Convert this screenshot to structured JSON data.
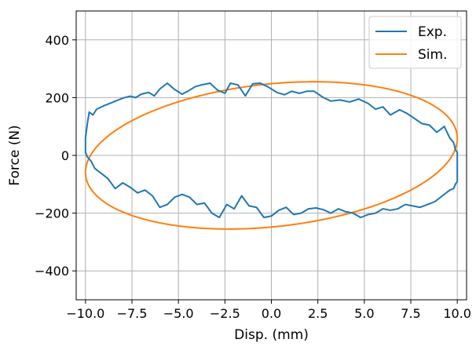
{
  "chart_data": {
    "type": "line",
    "title": "",
    "xlabel": "Disp. (mm)",
    "ylabel": "Force (N)",
    "xlim": [
      -10.5,
      10.5
    ],
    "ylim": [
      -500,
      500
    ],
    "xticks": [
      -10.0,
      -7.5,
      -5.0,
      -2.5,
      0.0,
      2.5,
      5.0,
      7.5,
      10.0
    ],
    "xtick_labels": [
      "−10.0",
      "−7.5",
      "−5.0",
      "−2.5",
      "0.0",
      "2.5",
      "5.0",
      "7.5",
      "10.0"
    ],
    "yticks": [
      -400,
      -200,
      0,
      200,
      400
    ],
    "ytick_labels": [
      "−400",
      "−200",
      "0",
      "200",
      "400"
    ],
    "grid": true,
    "legend_position": "top-right",
    "series": [
      {
        "name": "Exp.",
        "color": "#1f77b4",
        "x": [
          -10.0,
          -9.9,
          -9.8,
          -9.6,
          -9.4,
          -9.0,
          -8.5,
          -8.0,
          -7.6,
          -7.3,
          -7.0,
          -6.6,
          -6.3,
          -6.0,
          -5.6,
          -5.2,
          -4.8,
          -4.5,
          -4.1,
          -3.7,
          -3.3,
          -2.9,
          -2.5,
          -2.2,
          -1.8,
          -1.4,
          -1.0,
          -0.6,
          -0.2,
          0.3,
          0.7,
          1.1,
          1.5,
          1.9,
          2.3,
          2.8,
          3.2,
          3.7,
          4.2,
          4.7,
          5.2,
          5.6,
          6.0,
          6.4,
          6.9,
          7.3,
          7.7,
          8.1,
          8.5,
          8.9,
          9.3,
          9.6,
          9.8,
          9.9,
          10.0,
          10.0,
          10.0,
          9.9,
          9.8,
          9.6,
          9.2,
          8.8,
          8.4,
          8.0,
          7.6,
          7.2,
          6.8,
          6.4,
          6.0,
          5.6,
          5.2,
          4.8,
          4.4,
          4.0,
          3.6,
          3.2,
          2.8,
          2.4,
          2.0,
          1.6,
          1.2,
          0.8,
          0.4,
          0.0,
          -0.4,
          -0.8,
          -1.2,
          -1.6,
          -2.0,
          -2.4,
          -2.8,
          -3.2,
          -3.6,
          -4.0,
          -4.4,
          -4.8,
          -5.2,
          -5.6,
          -6.0,
          -6.4,
          -6.8,
          -7.2,
          -7.6,
          -8.0,
          -8.4,
          -8.8,
          -9.2,
          -9.5,
          -9.7,
          -9.9,
          -10.0,
          -10.0
        ],
        "y": [
          60,
          110,
          150,
          140,
          160,
          172,
          185,
          198,
          205,
          200,
          212,
          218,
          206,
          230,
          250,
          228,
          212,
          222,
          238,
          245,
          250,
          226,
          215,
          250,
          244,
          206,
          248,
          250,
          238,
          218,
          210,
          222,
          215,
          222,
          222,
          200,
          188,
          192,
          185,
          195,
          180,
          160,
          168,
          140,
          158,
          145,
          128,
          110,
          105,
          80,
          100,
          60,
          45,
          20,
          10,
          -10,
          -90,
          -100,
          -115,
          -120,
          -140,
          -160,
          -170,
          -180,
          -175,
          -170,
          -185,
          -190,
          -185,
          -200,
          -205,
          -215,
          -200,
          -195,
          -185,
          -200,
          -188,
          -182,
          -185,
          -200,
          -205,
          -180,
          -190,
          -210,
          -215,
          -180,
          -175,
          -140,
          -185,
          -170,
          -215,
          -200,
          -165,
          -170,
          -145,
          -135,
          -145,
          -170,
          -180,
          -140,
          -120,
          -130,
          -110,
          -95,
          -115,
          -80,
          -60,
          -45,
          -20,
          -5,
          10,
          60
        ]
      },
      {
        "name": "Sim.",
        "color": "#ff7f0e",
        "amplitude": 10.0,
        "peak_force": 255,
        "peak_disp": 2.3
      }
    ]
  }
}
